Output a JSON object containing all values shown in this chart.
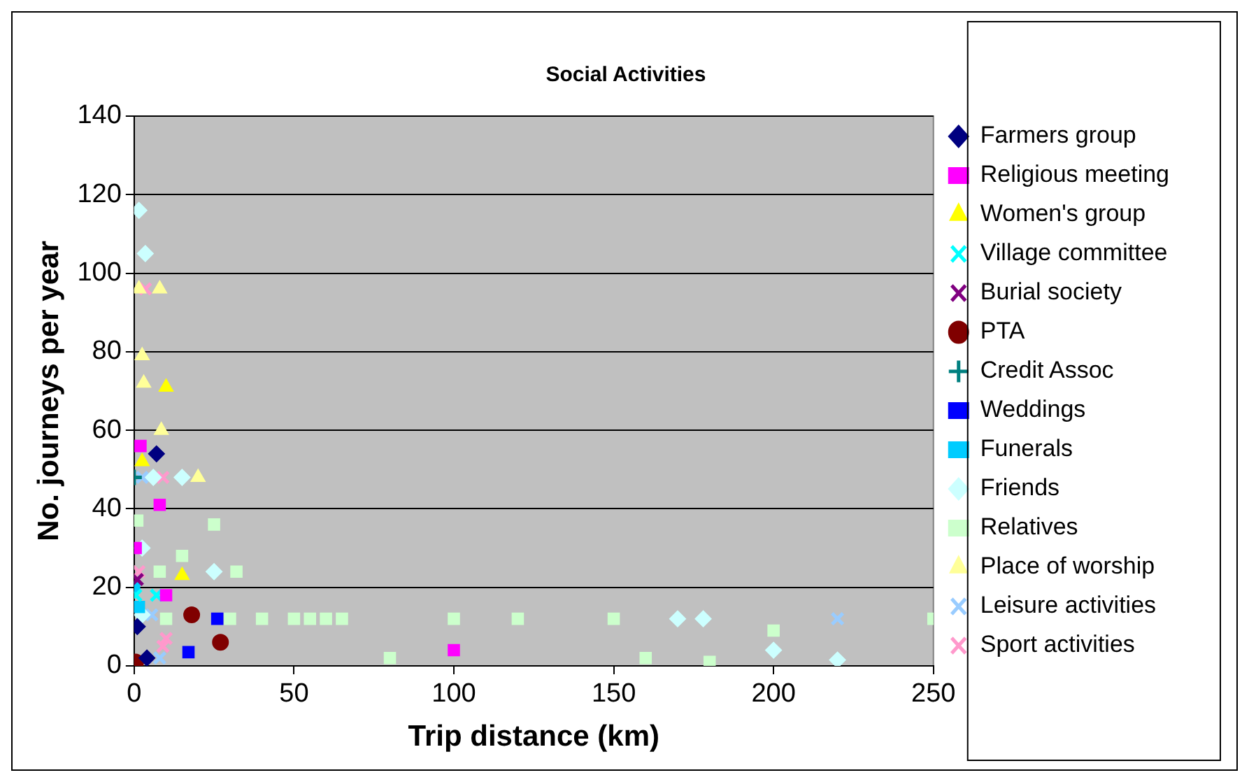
{
  "chart_data": {
    "type": "scatter",
    "title": "Social Activities",
    "xlabel": "Trip distance (km)",
    "ylabel": "No. journeys per year",
    "xlim": [
      0,
      250
    ],
    "xticks": [
      0,
      50,
      100,
      150,
      200,
      250
    ],
    "ylim": [
      0,
      140
    ],
    "yticks": [
      0,
      20,
      40,
      60,
      80,
      100,
      120,
      140
    ],
    "grid": "y",
    "legend": "right",
    "series": [
      {
        "name": "Farmers group",
        "color": "#000080",
        "marker": "diamond",
        "x": [
          7,
          1,
          4
        ],
        "values": [
          54,
          10,
          2
        ]
      },
      {
        "name": "Religious meeting",
        "color": "#ff00ff",
        "marker": "square",
        "x": [
          2,
          8,
          0.5,
          10,
          100
        ],
        "values": [
          56,
          41,
          30,
          18,
          4
        ]
      },
      {
        "name": "Women's group",
        "color": "#ffff00",
        "marker": "triangle",
        "x": [
          10,
          2.5,
          15
        ],
        "values": [
          71,
          52,
          23
        ]
      },
      {
        "name": "Village committee",
        "color": "#00ffff",
        "marker": "cross",
        "x": [
          0.5,
          7
        ],
        "values": [
          18,
          18
        ]
      },
      {
        "name": "Burial society",
        "color": "#800080",
        "marker": "cross",
        "x": [
          1
        ],
        "values": [
          22
        ]
      },
      {
        "name": "PTA",
        "color": "#800000",
        "marker": "circle",
        "x": [
          18,
          27,
          0.5
        ],
        "values": [
          13,
          6,
          1
        ]
      },
      {
        "name": "Credit Assoc",
        "color": "#008080",
        "marker": "plus",
        "x": [
          0
        ],
        "values": [
          48
        ]
      },
      {
        "name": "Weddings",
        "color": "#0000ff",
        "marker": "square",
        "x": [
          26,
          17
        ],
        "values": [
          12,
          3.5
        ]
      },
      {
        "name": "Funerals",
        "color": "#00ccff",
        "marker": "square",
        "x": [
          1.5,
          0
        ],
        "values": [
          15,
          20
        ]
      },
      {
        "name": "Friends",
        "color": "#ccffff",
        "marker": "diamond",
        "x": [
          1.5,
          3.5,
          15,
          6,
          2.5,
          25,
          2.5,
          170,
          178,
          200,
          220
        ],
        "values": [
          116,
          105,
          48,
          48,
          30,
          24,
          13,
          12,
          12,
          4,
          1.5
        ]
      },
      {
        "name": "Relatives",
        "color": "#ccffcc",
        "marker": "square",
        "x": [
          1,
          25,
          15,
          8,
          32,
          10,
          30,
          40,
          50,
          55,
          60,
          65,
          80,
          100,
          120,
          150,
          160,
          180,
          200,
          250
        ],
        "values": [
          37,
          36,
          28,
          24,
          24,
          12,
          12,
          12,
          12,
          12,
          12,
          12,
          2,
          12,
          12,
          12,
          2,
          1,
          9,
          12
        ]
      },
      {
        "name": "Place of worship",
        "color": "#ffff99",
        "marker": "triangle",
        "x": [
          1.5,
          8,
          2.5,
          3,
          8.5,
          20
        ],
        "values": [
          96,
          96,
          79,
          72,
          60,
          48
        ]
      },
      {
        "name": "Leisure activities",
        "color": "#99ccff",
        "marker": "cross",
        "x": [
          2.5,
          5.5,
          8,
          220
        ],
        "values": [
          48,
          13,
          2,
          12
        ]
      },
      {
        "name": "Sport activities",
        "color": "#ff99cc",
        "marker": "cross",
        "x": [
          3.5,
          9,
          1.5,
          10,
          9
        ],
        "values": [
          96,
          48,
          24,
          7,
          5
        ]
      }
    ]
  }
}
